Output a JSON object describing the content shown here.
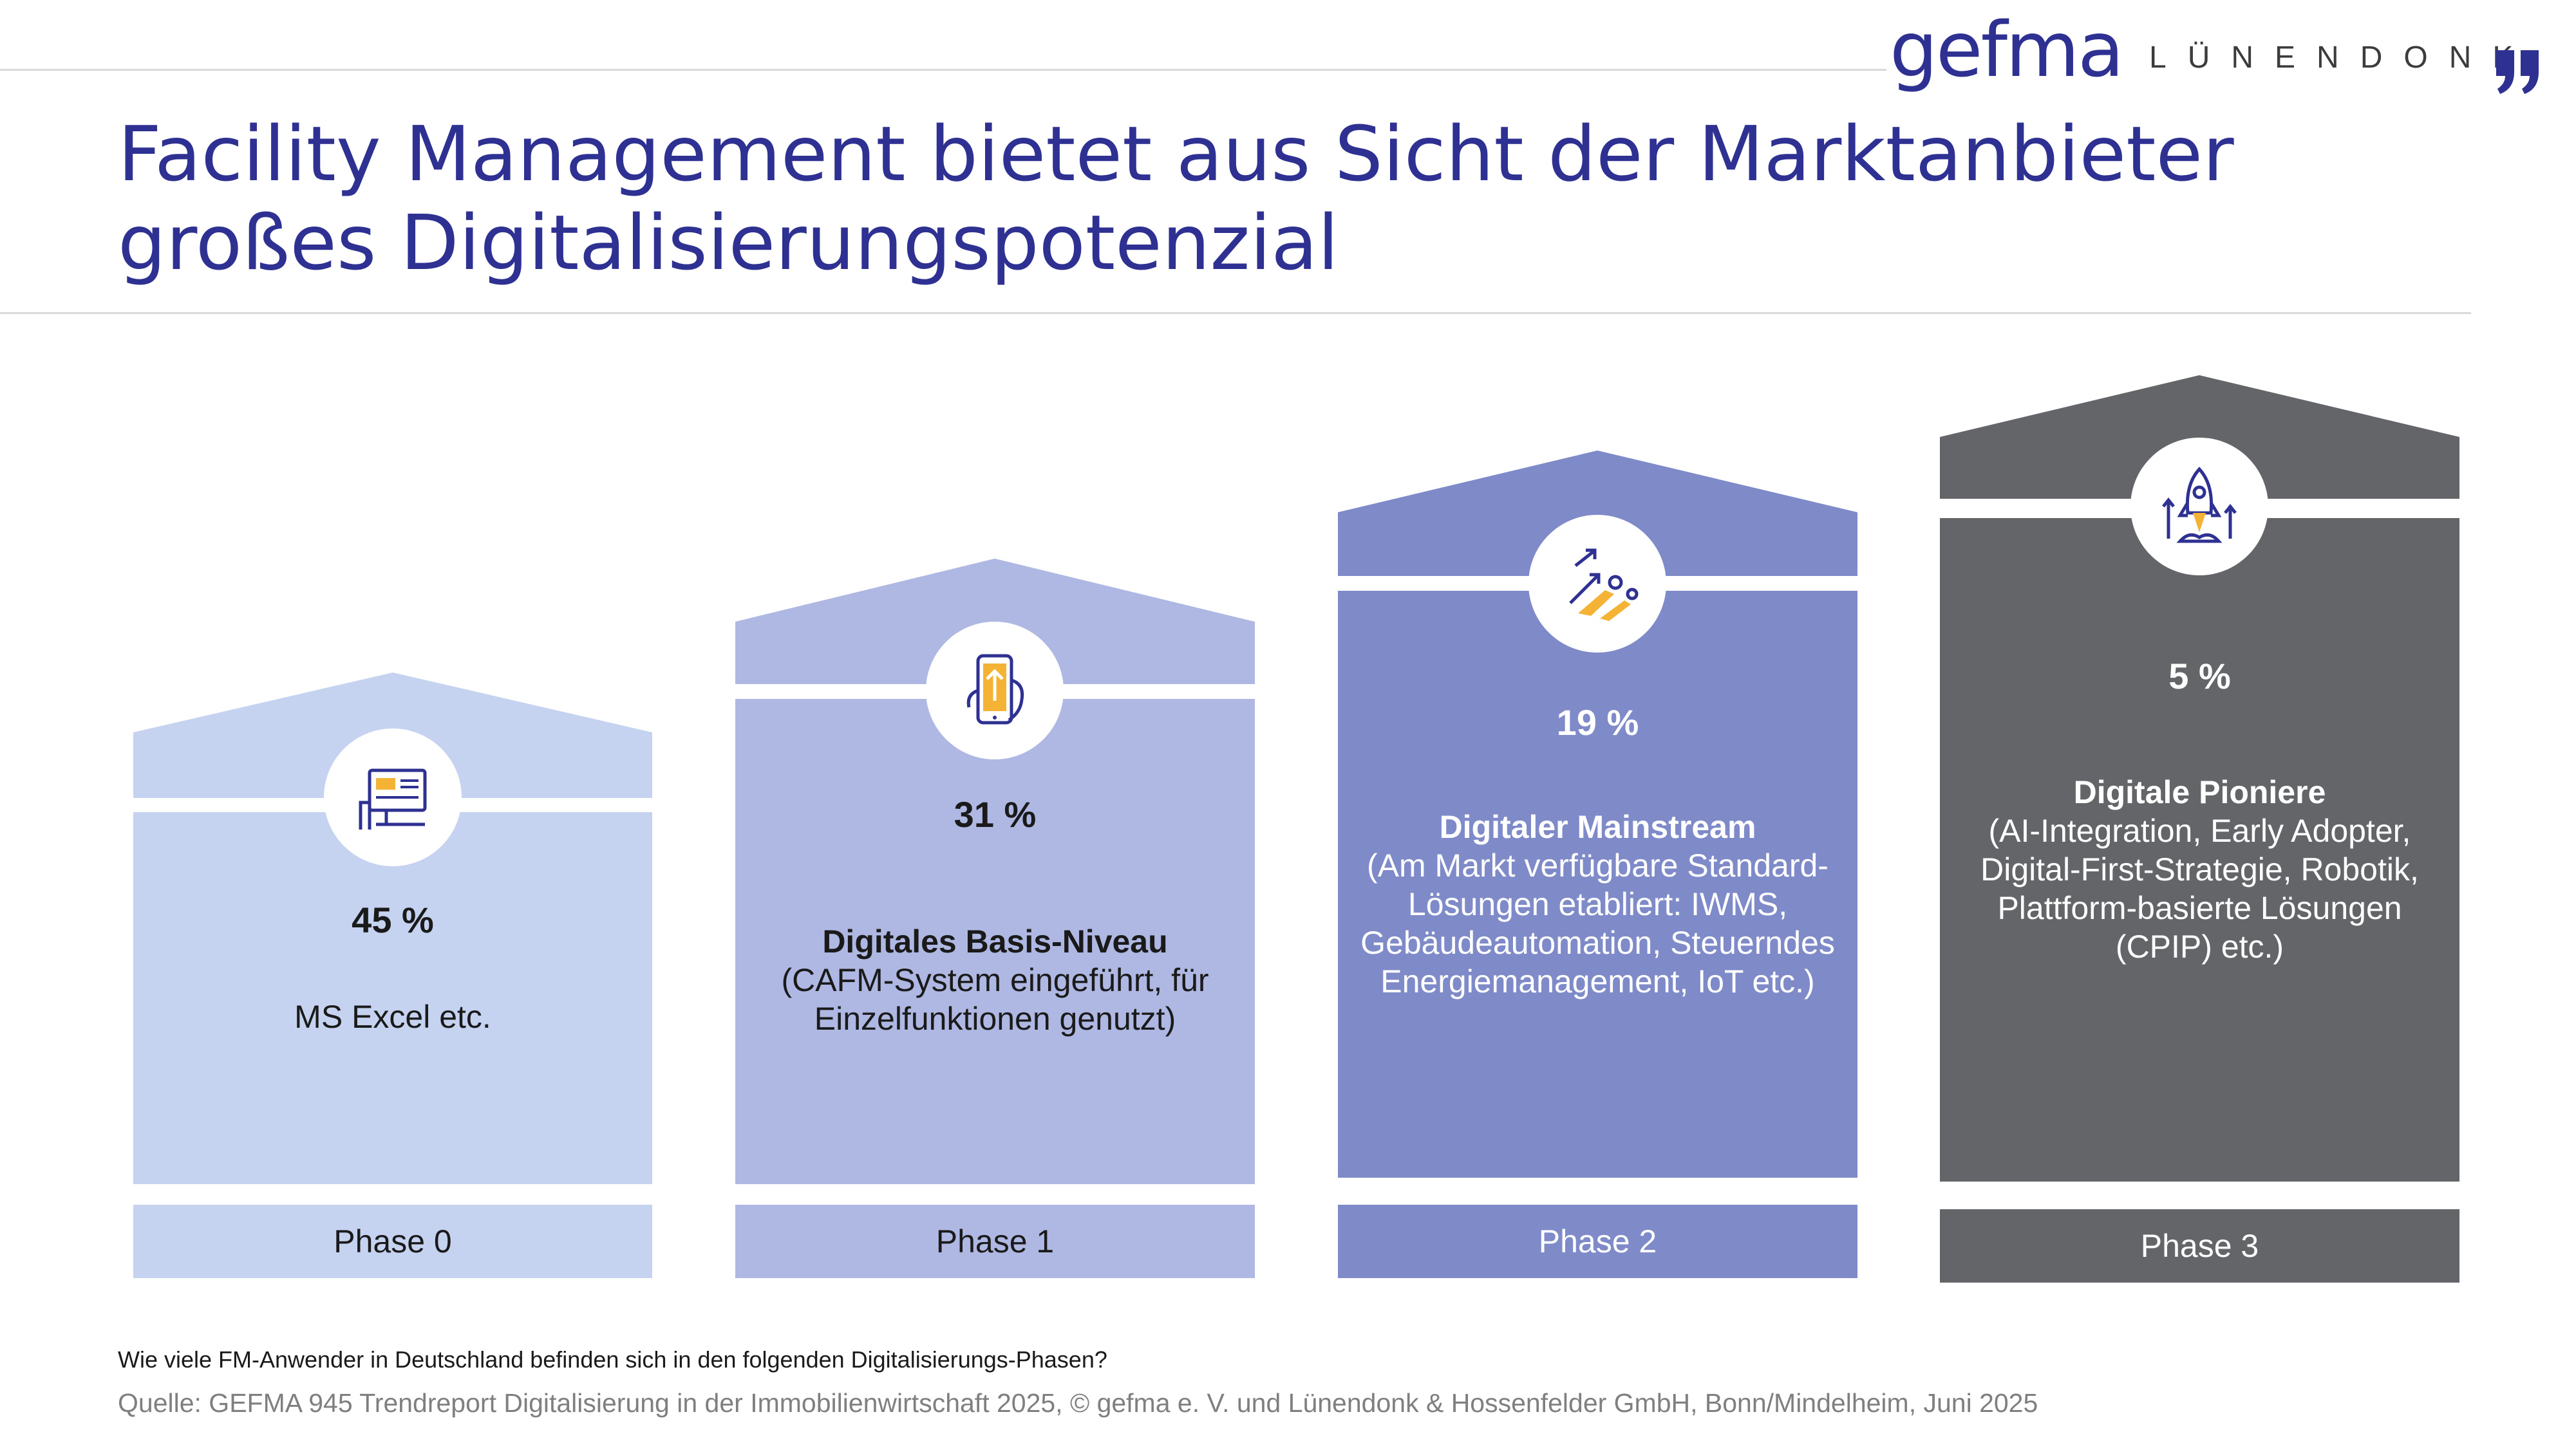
{
  "header": {
    "logo_gefma": "gefma",
    "logo_luenendonk": "LÜNENDONK",
    "title_line1": "Facility Management bietet aus Sicht der Marktanbieter",
    "title_line2": "großes Digitalisierungspotenzial"
  },
  "colors": {
    "title": "#2e3192",
    "phase0": "#c5d3f1",
    "phase1": "#afb8e2",
    "phase2": "#7f8ac9",
    "phase3": "#636569"
  },
  "phases": [
    {
      "label": "Phase 0",
      "percent": "45 %",
      "title": "",
      "desc_lines": [
        "MS Excel etc."
      ],
      "icon": "computer-screen-icon"
    },
    {
      "label": "Phase 1",
      "percent": "31 %",
      "title": "Digitales Basis-Niveau",
      "desc_lines": [
        "(CAFM-System eingeführt, für",
        "Einzelfunktionen genutzt)"
      ],
      "icon": "smartphone-hand-icon"
    },
    {
      "label": "Phase 2",
      "percent": "19 %",
      "title": "Digitaler Mainstream",
      "desc_lines": [
        "(Am Markt verfügbare Standard-",
        "Lösungen etabliert: IWMS,",
        "Gebäudeautomation, Steuerndes",
        "Energiemanagement, IoT etc.)"
      ],
      "icon": "flying-people-arrows-icon"
    },
    {
      "label": "Phase 3",
      "percent": "5 %",
      "title": "Digitale Pioniere",
      "desc_lines": [
        "(AI-Integration, Early Adopter,",
        "Digital-First-Strategie, Robotik,",
        "Plattform-basierte Lösungen",
        "(CPIP) etc.)"
      ],
      "icon": "rocket-icon"
    }
  ],
  "chart_data": {
    "type": "bar",
    "title": "Facility Management bietet aus Sicht der Marktanbieter großes Digitalisierungspotenzial",
    "categories": [
      "Phase 0",
      "Phase 1",
      "Phase 2",
      "Phase 3"
    ],
    "values": [
      45,
      31,
      19,
      5
    ],
    "category_names": [
      "",
      "Digitales Basis-Niveau",
      "Digitaler Mainstream",
      "Digitale Pioniere"
    ],
    "unit": "%"
  },
  "footer": {
    "question": "Wie viele FM-Anwender in Deutschland befinden sich in den folgenden Digitalisierungs-Phasen?",
    "source": "Quelle: GEFMA 945 Trendreport Digitalisierung in der Immobilienwirtschaft 2025, © gefma e. V. und Lünendonk & Hossenfelder GmbH, Bonn/Mindelheim, Juni 2025"
  }
}
